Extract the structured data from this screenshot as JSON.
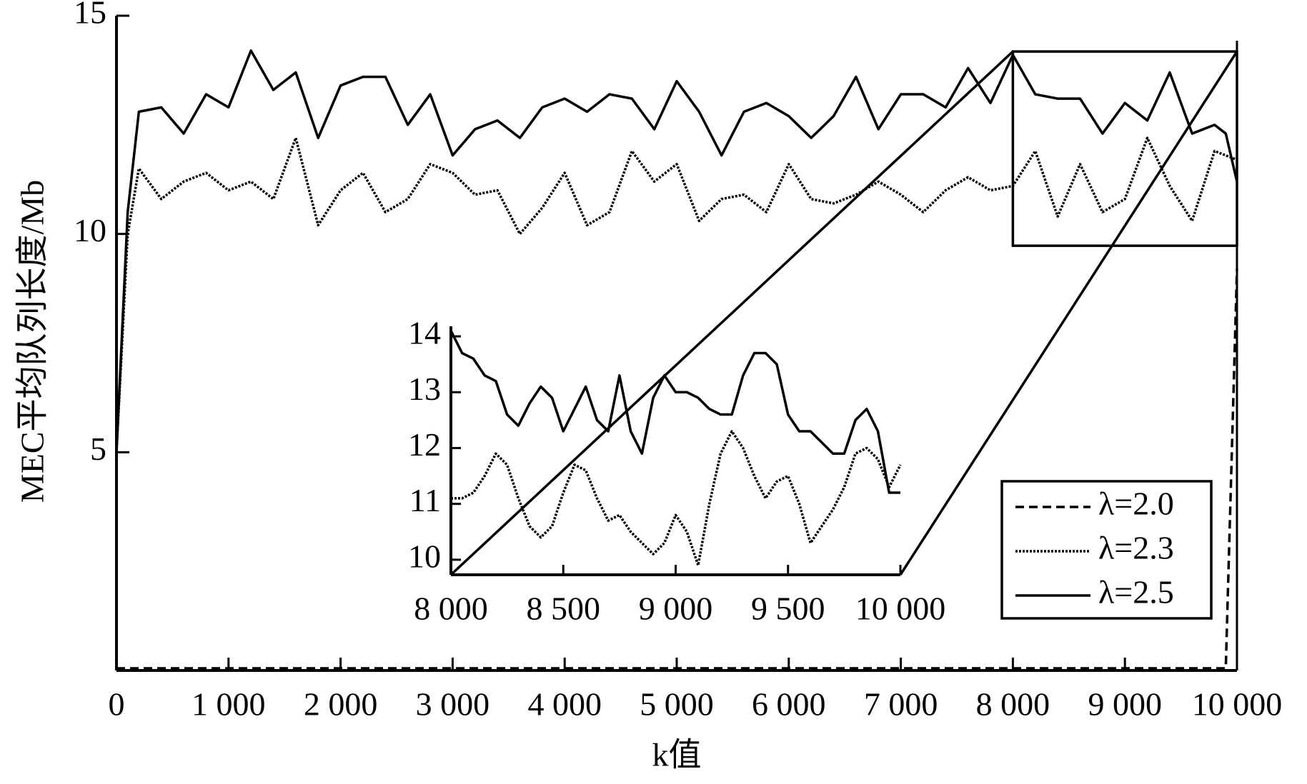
{
  "chart_data": [
    {
      "type": "line",
      "xlabel": "k值",
      "ylabel": "MEC平均队列长度/Mb",
      "x": [
        0,
        100,
        200,
        400,
        600,
        800,
        1000,
        1200,
        1400,
        1600,
        1800,
        2000,
        2200,
        2400,
        2600,
        2800,
        3000,
        3200,
        3400,
        3600,
        3800,
        4000,
        4200,
        4400,
        4600,
        4800,
        5000,
        5200,
        5400,
        5600,
        5800,
        6000,
        6200,
        6400,
        6600,
        6800,
        7000,
        7200,
        7400,
        7600,
        7800,
        8000,
        8200,
        8400,
        8600,
        8800,
        9000,
        9200,
        9400,
        9600,
        9800,
        9900,
        10000
      ],
      "series": [
        {
          "name": "λ=2.0",
          "color": "#000000",
          "linestyle": "dashed",
          "values": [
            0.05,
            0.05,
            0.05,
            0.05,
            0.05,
            0.05,
            0.05,
            0.05,
            0.05,
            0.05,
            0.05,
            0.05,
            0.05,
            0.05,
            0.05,
            0.05,
            0.05,
            0.05,
            0.05,
            0.05,
            0.05,
            0.05,
            0.05,
            0.05,
            0.05,
            0.05,
            0.05,
            0.05,
            0.05,
            0.05,
            0.05,
            0.05,
            0.05,
            0.05,
            0.05,
            0.05,
            0.05,
            0.05,
            0.05,
            0.05,
            0.05,
            0.05,
            0.05,
            0.05,
            0.05,
            0.05,
            0.05,
            0.05,
            0.05,
            0.05,
            0.05,
            0.05,
            9.2
          ]
        },
        {
          "name": "λ=2.3",
          "color": "#000000",
          "linestyle": "dotted",
          "values": [
            5,
            10,
            11.5,
            10.8,
            11.2,
            11.4,
            11.0,
            11.2,
            10.8,
            12.2,
            10.2,
            11.0,
            11.4,
            10.5,
            10.8,
            11.6,
            11.4,
            10.9,
            11.0,
            10.0,
            10.6,
            11.4,
            10.2,
            10.5,
            11.9,
            11.2,
            11.6,
            10.3,
            10.8,
            10.9,
            10.5,
            11.6,
            10.8,
            10.7,
            10.9,
            11.2,
            10.9,
            10.5,
            11.0,
            11.3,
            11.0,
            11.1,
            11.9,
            10.4,
            11.6,
            10.5,
            10.8,
            12.2,
            11.1,
            10.3,
            11.9,
            11.8,
            11.7
          ]
        },
        {
          "name": "λ=2.5",
          "color": "#000000",
          "linestyle": "solid",
          "values": [
            5,
            10.5,
            12.8,
            12.9,
            12.3,
            13.2,
            12.9,
            14.2,
            13.3,
            13.7,
            12.2,
            13.4,
            13.6,
            13.6,
            12.5,
            13.2,
            11.8,
            12.4,
            12.6,
            12.2,
            12.9,
            13.1,
            12.8,
            13.2,
            13.1,
            12.4,
            13.5,
            12.8,
            11.8,
            12.8,
            13.0,
            12.7,
            12.2,
            12.7,
            13.6,
            12.4,
            13.2,
            13.2,
            12.9,
            13.8,
            13.0,
            14.1,
            13.2,
            13.1,
            13.1,
            12.3,
            13.0,
            12.6,
            13.7,
            12.3,
            12.5,
            12.3,
            11.2
          ]
        }
      ],
      "xlim": [
        0,
        10000
      ],
      "ylim": [
        0,
        15
      ],
      "xticks": [
        0,
        {
          "value": 1000,
          "label": "1 000"
        },
        {
          "value": 2000,
          "label": "2 000"
        },
        {
          "value": 3000,
          "label": "3 000"
        },
        {
          "value": 4000,
          "label": "4 000"
        },
        {
          "value": 5000,
          "label": "5 000"
        },
        {
          "value": 6000,
          "label": "6 000"
        },
        {
          "value": 7000,
          "label": "7 000"
        },
        {
          "value": 8000,
          "label": "8 000"
        },
        {
          "value": 9000,
          "label": "9 000"
        },
        {
          "value": 10000,
          "label": "10 000"
        }
      ],
      "yticks": [
        5,
        10,
        15
      ],
      "legend": "lower right"
    },
    {
      "type": "line",
      "x": [
        8000,
        8050,
        8100,
        8150,
        8200,
        8250,
        8300,
        8350,
        8400,
        8450,
        8500,
        8550,
        8600,
        8650,
        8700,
        8750,
        8800,
        8850,
        8900,
        8950,
        9000,
        9050,
        9100,
        9150,
        9200,
        9250,
        9300,
        9350,
        9400,
        9450,
        9500,
        9550,
        9600,
        9650,
        9700,
        9750,
        9800,
        9850,
        9900,
        9950,
        10000
      ],
      "series": [
        {
          "color": "#000000",
          "linestyle": "dotted",
          "values": [
            11.1,
            11.1,
            11.2,
            11.5,
            11.9,
            11.7,
            11.1,
            10.6,
            10.4,
            10.6,
            11.2,
            11.7,
            11.6,
            11.1,
            10.7,
            10.8,
            10.5,
            10.3,
            10.1,
            10.3,
            10.8,
            10.5,
            9.9,
            11.0,
            11.9,
            12.3,
            12.0,
            11.5,
            11.1,
            11.4,
            11.5,
            11.0,
            10.3,
            10.6,
            10.9,
            11.3,
            11.9,
            12.0,
            11.8,
            11.3,
            11.7
          ]
        },
        {
          "color": "#000000",
          "linestyle": "solid",
          "values": [
            14.1,
            13.7,
            13.6,
            13.3,
            13.2,
            12.6,
            12.4,
            12.8,
            13.1,
            12.9,
            12.3,
            12.7,
            13.1,
            12.5,
            12.3,
            13.3,
            12.3,
            11.9,
            12.9,
            13.3,
            13.0,
            13.0,
            12.9,
            12.7,
            12.6,
            12.6,
            13.3,
            13.7,
            13.7,
            13.5,
            12.6,
            12.3,
            12.3,
            12.1,
            11.9,
            11.9,
            12.5,
            12.7,
            12.3,
            11.2,
            11.2
          ]
        }
      ],
      "xlim": [
        8000,
        10000
      ],
      "ylim": [
        9.73,
        14.18
      ],
      "xticks": [
        {
          "value": 8000,
          "label": "8 000"
        },
        {
          "value": 8500,
          "label": "8 500"
        },
        {
          "value": 9000,
          "label": "9 000"
        },
        {
          "value": 9500,
          "label": "9 500"
        },
        {
          "value": 10000,
          "label": "10 000"
        }
      ],
      "yticks": [
        10,
        11,
        12,
        13,
        14
      ]
    }
  ]
}
